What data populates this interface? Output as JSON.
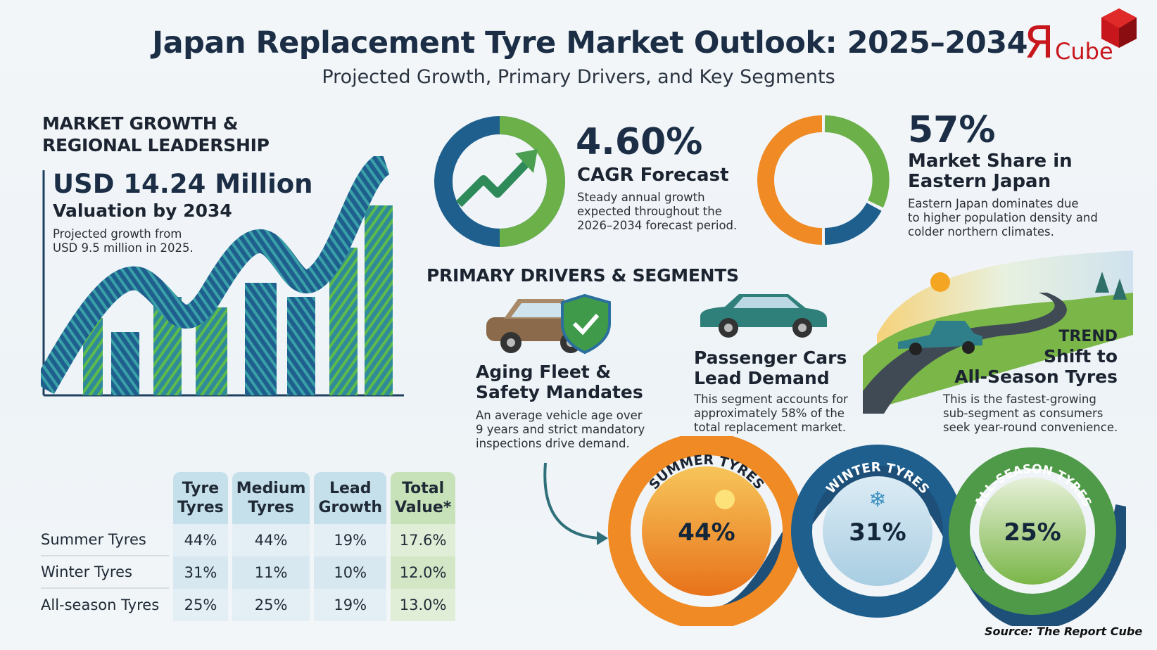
{
  "header": {
    "title": "Japan Replacement Tyre Market Outlook: 2025–2034",
    "subtitle": "Projected Growth, Primary Drivers, and Key Segments",
    "logo_text": "RCube"
  },
  "growth": {
    "heading_line1": "MARKET GROWTH &",
    "heading_line2": "REGIONAL LEADERSHIP",
    "value": "USD 14.24 Million",
    "value_caption": "Valuation by 2034",
    "desc_line1": "Projected growth from",
    "desc_line2": "USD 9.5 million in 2025."
  },
  "cagr": {
    "value": "4.60%",
    "label": "CAGR Forecast",
    "desc_line1": "Steady annual growth",
    "desc_line2": "expected throughout the",
    "desc_line3": "2026–2034 forecast period.",
    "icon": "trend-up-arrow-icon",
    "colors": {
      "blue": "#1e5f8e",
      "green": "#6cb04a"
    }
  },
  "share": {
    "value": "57%",
    "label_line1": "Market Share in",
    "label_line2": "Eastern Japan",
    "desc_line1": "Eastern Japan dominates due",
    "desc_line2": "to higher population density and",
    "desc_line3": "colder northern climates.",
    "percent": 57,
    "colors": {
      "orange": "#f08a24",
      "blue": "#1e5f8e",
      "green": "#6cb04a"
    }
  },
  "drivers": {
    "heading": "PRIMARY DRIVERS & SEGMENTS",
    "items": [
      {
        "title_line1": "Aging Fleet &",
        "title_line2": "Safety Mandates",
        "desc_line1": "An average vehicle age over",
        "desc_line2": "9 years and strict mandatory",
        "desc_line3": "inspections drive demand.",
        "icon": "old-car-shield-icon"
      },
      {
        "title_line1": "Passenger Cars",
        "title_line2": "Lead Demand",
        "desc_line1": "This segment accounts for",
        "desc_line2": "approximately 58% of the",
        "desc_line3": "total replacement market.",
        "icon": "sedan-car-icon"
      },
      {
        "kicker": "TREND",
        "title_line1": "Shift to",
        "title_line2": "All-Season Tyres",
        "desc_line1": "This is the fastest-growing",
        "desc_line2": "sub-segment as consumers",
        "desc_line3": "seek year-round convenience.",
        "icon": "season-road-icon"
      }
    ]
  },
  "table": {
    "headers": [
      [
        "Tyre",
        "Tyres"
      ],
      [
        "Medium",
        "Tyres"
      ],
      [
        "Lead",
        "Growth"
      ],
      [
        "Total",
        "Value*"
      ]
    ],
    "rows": [
      {
        "label": "Summer Tyres",
        "values": [
          "44%",
          "44%",
          "19%",
          "17.6%"
        ]
      },
      {
        "label": "Winter Tyres",
        "values": [
          "31%",
          "11%",
          "10%",
          "12.0%"
        ]
      },
      {
        "label": "All-season Tyres",
        "values": [
          "25%",
          "25%",
          "19%",
          "13.0%"
        ]
      }
    ]
  },
  "segments": [
    {
      "label": "SUMMER TYRES",
      "value": "44%",
      "color": "#f08a24"
    },
    {
      "label": "WINTER TYRES",
      "value": "31%",
      "color": "#1e5f8e"
    },
    {
      "label": "ALL-SEASON TYRES",
      "value": "25%",
      "color": "#5fa348"
    }
  ],
  "source": "Source: The Report Cube"
}
